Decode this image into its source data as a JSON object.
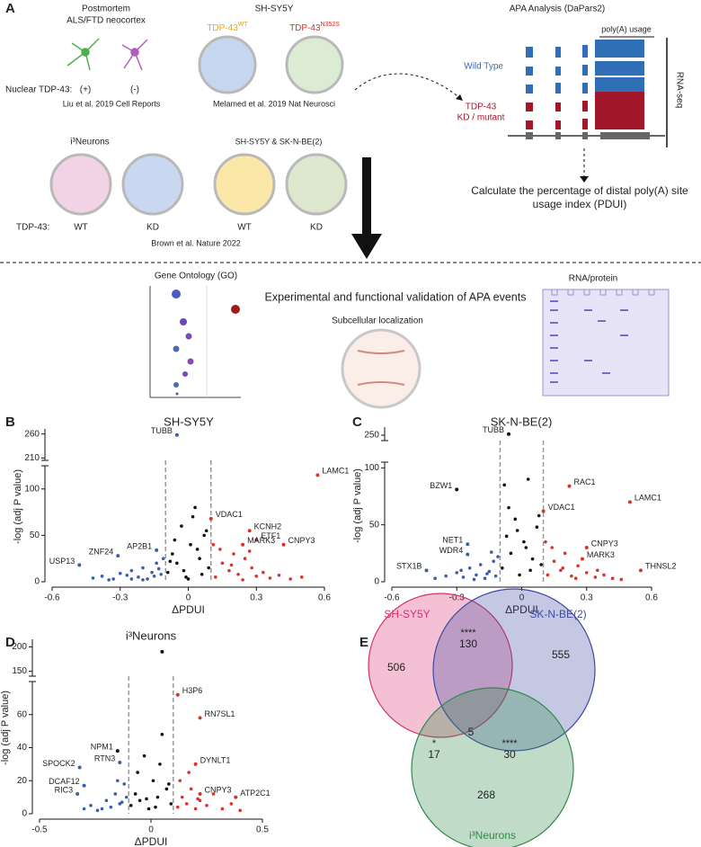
{
  "panel_a": {
    "letter": "A",
    "postmortem": {
      "title": "Postmortem",
      "subtitle": "ALS/FTD neocortex",
      "nuclear": "Nuclear TDP-43:",
      "pos": "(+)",
      "neg": "(-)",
      "ref": "Liu et al. 2019 Cell Reports"
    },
    "shsy5y": {
      "title": "SH-SY5Y",
      "wt": {
        "text": "TDP-43",
        "sup": "WT"
      },
      "mut": {
        "text": "TDP-43",
        "sup": "N352S"
      },
      "ref": "Melamed et al. 2019 Nat Neurosci"
    },
    "brown": {
      "neurons": "i³Neurons",
      "lines": "SH-SY5Y & SK-N-BE(2)",
      "tdp": "TDP-43:",
      "labels": [
        "WT",
        "KD",
        "WT",
        "KD"
      ],
      "ref": "Brown et al. Nature 2022"
    },
    "apa": {
      "title": "APA Analysis (DaPars2)",
      "usage": "poly(A) usage",
      "wt": "Wild Type",
      "kd1": "TDP-43",
      "kd2": "KD / mutant",
      "rnaseq": "RNA-seq",
      "calc1": "Calculate the percentage of distal poly(A) site",
      "calc2": "usage index (PDUI)"
    },
    "lower": {
      "go": "Gene Ontology (GO)",
      "validation": "Experimental and functional validation of APA events",
      "subcellular": "Subcellular localization",
      "rnaprotein": "RNA/protein"
    }
  },
  "chart_data": [
    {
      "type": "scatter",
      "panel": "B",
      "title": "SH-SY5Y",
      "xlabel": "ΔPDUI",
      "ylabel": "-log (adj P value)",
      "xlim": [
        -0.6,
        0.6
      ],
      "xticks": [
        -0.6,
        -0.3,
        0,
        0.3,
        0.6
      ],
      "ylim": [
        0,
        125
      ],
      "yticks": [
        0,
        50,
        100
      ],
      "upper_ylim": [
        205,
        265
      ],
      "upper_yticks": [
        210,
        260
      ],
      "thresholds": [
        -0.1,
        0.1
      ],
      "series": [
        {
          "color": "#3b5fa8",
          "x": [
            -0.42,
            -0.38,
            -0.33,
            -0.3,
            -0.27,
            -0.25,
            -0.22,
            -0.2,
            -0.18,
            -0.16,
            -0.14,
            -0.12,
            -0.11,
            -0.2,
            -0.15,
            -0.25,
            -0.13,
            -0.35
          ],
          "values": [
            4,
            6,
            3,
            9,
            7,
            12,
            5,
            15,
            3,
            10,
            20,
            8,
            25,
            2,
            6,
            3,
            14,
            2
          ]
        },
        {
          "color": "#111111",
          "x": [
            -0.09,
            -0.07,
            -0.05,
            -0.03,
            -0.01,
            0.01,
            0.03,
            0.05,
            0.07,
            0.09,
            -0.06,
            0.02,
            0.04,
            -0.02,
            0.08,
            0.06,
            -0.08,
            0
          ],
          "values": [
            10,
            30,
            20,
            60,
            5,
            40,
            80,
            25,
            50,
            15,
            45,
            70,
            35,
            12,
            55,
            8,
            22,
            3
          ]
        },
        {
          "color": "#d9342b",
          "x": [
            0.12,
            0.15,
            0.18,
            0.2,
            0.22,
            0.25,
            0.28,
            0.3,
            0.33,
            0.36,
            0.4,
            0.45,
            0.14,
            0.19,
            0.24,
            0.27,
            0.5,
            0.11
          ],
          "values": [
            5,
            20,
            12,
            30,
            8,
            25,
            15,
            6,
            10,
            4,
            7,
            3,
            35,
            18,
            2,
            33,
            5,
            40
          ]
        }
      ],
      "annotations": [
        {
          "text": "TUBB",
          "x": -0.05,
          "y": 258,
          "color": "#3b5fa8"
        },
        {
          "text": "LAMC1",
          "x": 0.57,
          "y": 115,
          "color": "#d9342b"
        },
        {
          "text": "VDAC1",
          "x": 0.1,
          "y": 68,
          "color": "#d9342b"
        },
        {
          "text": "KCNH2",
          "x": 0.27,
          "y": 55,
          "color": "#d9342b"
        },
        {
          "text": "ETF1",
          "x": 0.3,
          "y": 45,
          "color": "#d9342b"
        },
        {
          "text": "MARK3",
          "x": 0.24,
          "y": 40,
          "color": "#d9342b"
        },
        {
          "text": "CNPY3",
          "x": 0.42,
          "y": 40,
          "color": "#d9342b"
        },
        {
          "text": "AP2B1",
          "x": -0.14,
          "y": 34,
          "color": "#3b5fa8"
        },
        {
          "text": "ZNF24",
          "x": -0.31,
          "y": 28,
          "color": "#3b5fa8"
        },
        {
          "text": "USP13",
          "x": -0.48,
          "y": 18,
          "color": "#3b5fa8"
        }
      ]
    },
    {
      "type": "scatter",
      "panel": "C",
      "title": "SK-N-BE(2)",
      "xlabel": "ΔPDUI",
      "ylabel": "-log (adj P value)",
      "xlim": [
        -0.6,
        0.6
      ],
      "xticks": [
        -0.6,
        -0.3,
        0,
        0.3,
        0.6
      ],
      "ylim": [
        0,
        105
      ],
      "yticks": [
        0,
        50,
        100
      ],
      "upper_ylim": [
        240,
        260
      ],
      "upper_yticks": [
        250
      ],
      "thresholds": [
        -0.1,
        0.1
      ],
      "series": [
        {
          "color": "#3b5fa8",
          "x": [
            -0.4,
            -0.35,
            -0.3,
            -0.27,
            -0.24,
            -0.21,
            -0.19,
            -0.17,
            -0.15,
            -0.13,
            -0.12,
            -0.11,
            -0.22,
            -0.16,
            -0.28,
            -0.14
          ],
          "values": [
            3,
            5,
            8,
            4,
            12,
            6,
            15,
            3,
            9,
            18,
            5,
            22,
            2,
            7,
            10,
            26
          ]
        },
        {
          "color": "#111111",
          "x": [
            -0.09,
            -0.07,
            -0.05,
            -0.03,
            -0.01,
            0.01,
            0.03,
            0.05,
            0.07,
            0.09,
            -0.06,
            0.02,
            0.04,
            -0.02,
            0.08,
            -0.08
          ],
          "values": [
            12,
            40,
            25,
            55,
            6,
            35,
            90,
            20,
            48,
            15,
            65,
            30,
            10,
            45,
            58,
            85
          ]
        },
        {
          "color": "#d9342b",
          "x": [
            0.12,
            0.15,
            0.18,
            0.2,
            0.23,
            0.26,
            0.3,
            0.34,
            0.38,
            0.42,
            0.46,
            0.14,
            0.19,
            0.25,
            0.11,
            0.35
          ],
          "values": [
            6,
            18,
            10,
            25,
            5,
            14,
            8,
            4,
            6,
            3,
            2,
            30,
            12,
            3,
            35,
            10
          ]
        }
      ],
      "annotations": [
        {
          "text": "TUBB",
          "x": -0.06,
          "y": 252,
          "color": "#111111"
        },
        {
          "text": "BZW1",
          "x": -0.3,
          "y": 81,
          "color": "#111111"
        },
        {
          "text": "RAC1",
          "x": 0.22,
          "y": 84,
          "color": "#d9342b"
        },
        {
          "text": "LAMC1",
          "x": 0.5,
          "y": 70,
          "color": "#d9342b"
        },
        {
          "text": "VDAC1",
          "x": 0.1,
          "y": 62,
          "color": "#d9342b"
        },
        {
          "text": "NET1",
          "x": -0.25,
          "y": 33,
          "color": "#3b5fa8"
        },
        {
          "text": "WDR4",
          "x": -0.25,
          "y": 24,
          "color": "#3b5fa8"
        },
        {
          "text": "STX1B",
          "x": -0.44,
          "y": 10,
          "color": "#3b5fa8"
        },
        {
          "text": "CNPY3",
          "x": 0.3,
          "y": 30,
          "color": "#d9342b"
        },
        {
          "text": "MARK3",
          "x": 0.28,
          "y": 20,
          "color": "#d9342b"
        },
        {
          "text": "THNSL2",
          "x": 0.55,
          "y": 10,
          "color": "#d9342b"
        }
      ]
    },
    {
      "type": "scatter",
      "panel": "D",
      "title": "i³Neurons",
      "xlabel": "ΔPDUI",
      "ylabel": "-log (adj P value)",
      "xlim": [
        -0.5,
        0.5
      ],
      "xticks": [
        -0.5,
        0,
        0.5
      ],
      "ylim": [
        0,
        80
      ],
      "yticks": [
        0,
        20,
        40,
        60
      ],
      "upper_ylim": [
        140,
        210
      ],
      "upper_yticks": [
        150,
        200
      ],
      "thresholds": [
        -0.1,
        0.1
      ],
      "series": [
        {
          "color": "#3b5fa8",
          "x": [
            -0.3,
            -0.27,
            -0.24,
            -0.2,
            -0.18,
            -0.16,
            -0.14,
            -0.12,
            -0.11,
            -0.22,
            -0.15,
            -0.13
          ],
          "values": [
            3,
            5,
            2,
            8,
            4,
            12,
            6,
            18,
            10,
            3,
            20,
            7
          ]
        },
        {
          "color": "#111111",
          "x": [
            -0.09,
            -0.07,
            -0.05,
            -0.03,
            -0.01,
            0.01,
            0.03,
            0.05,
            0.07,
            0.09,
            -0.06,
            0.02,
            0.04,
            -0.02,
            0.08
          ],
          "values": [
            5,
            12,
            8,
            35,
            3,
            20,
            10,
            48,
            15,
            6,
            25,
            4,
            30,
            9,
            18
          ]
        },
        {
          "color": "#d9342b",
          "x": [
            0.12,
            0.14,
            0.16,
            0.18,
            0.2,
            0.22,
            0.25,
            0.28,
            0.32,
            0.36,
            0.4,
            0.13,
            0.17,
            0.21
          ],
          "values": [
            4,
            10,
            6,
            15,
            3,
            8,
            5,
            12,
            3,
            6,
            2,
            20,
            25,
            9
          ]
        }
      ],
      "annotations": [
        {
          "text": "H3P6",
          "x": 0.12,
          "y": 72,
          "color": "#d9342b"
        },
        {
          "text": "RN7SL1",
          "x": 0.22,
          "y": 58,
          "color": "#d9342b"
        },
        {
          "text": "DYNLT1",
          "x": 0.2,
          "y": 30,
          "color": "#d9342b"
        },
        {
          "text": "CNPY3",
          "x": 0.22,
          "y": 12,
          "color": "#d9342b"
        },
        {
          "text": "ATP2C1",
          "x": 0.38,
          "y": 10,
          "color": "#d9342b"
        },
        {
          "text": "NPM1",
          "x": -0.15,
          "y": 38,
          "color": "#111111"
        },
        {
          "text": "RTN3",
          "x": -0.14,
          "y": 31,
          "color": "#3b5fa8"
        },
        {
          "text": "SPOCK2",
          "x": -0.32,
          "y": 28,
          "color": "#3b5fa8"
        },
        {
          "text": "DCAF12",
          "x": -0.3,
          "y": 17,
          "color": "#3b5fa8"
        },
        {
          "text": "RIC3",
          "x": -0.33,
          "y": 12,
          "color": "#3b5fa8"
        },
        {
          "text": "",
          "x": 0.05,
          "y": 190,
          "color": "#111111"
        }
      ]
    }
  ],
  "venn": {
    "panel": "E",
    "sets": [
      {
        "name": "SH-SY5Y",
        "color": "#d6336c"
      },
      {
        "name": "SK-N-BE(2)",
        "color": "#3f4aa3"
      },
      {
        "name": "i³Neurons",
        "color": "#2e8b4a"
      }
    ],
    "regions": [
      {
        "count": 506
      },
      {
        "count": 555
      },
      {
        "count": 268
      },
      {
        "count": 130,
        "sig": "****"
      },
      {
        "count": 17,
        "sig": "*"
      },
      {
        "count": 30,
        "sig": "****"
      },
      {
        "count": 5
      }
    ]
  }
}
